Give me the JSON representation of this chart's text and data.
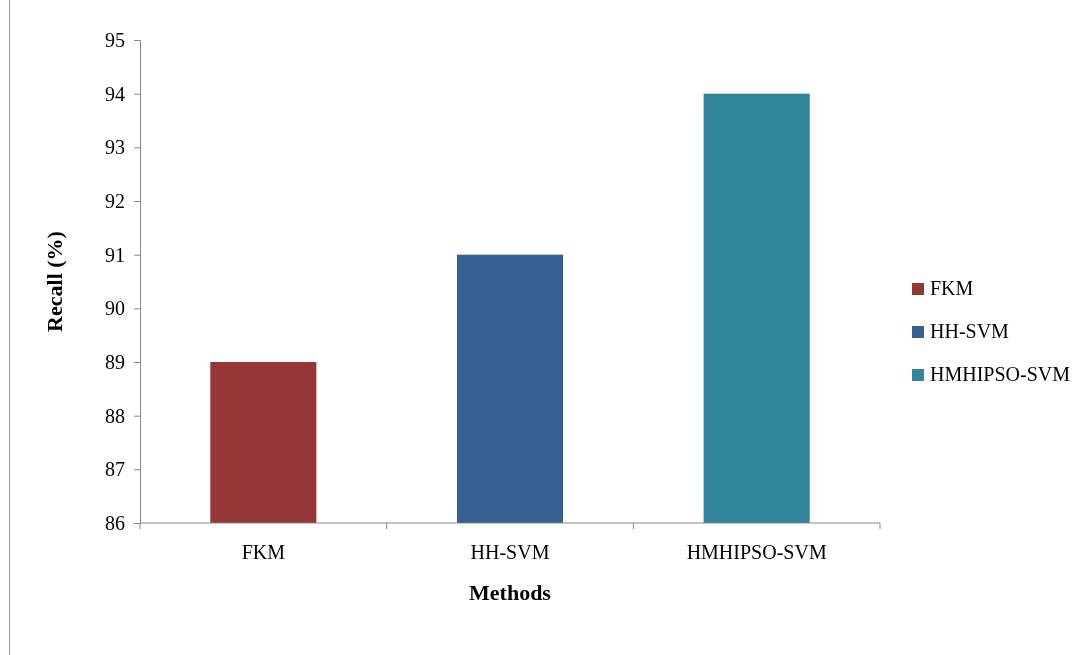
{
  "chart_data": {
    "type": "bar",
    "xlabel": "Methods",
    "ylabel": "Recall (%)",
    "categories": [
      "FKM",
      "HH-SVM",
      "HMHIPSO-SVM"
    ],
    "series": [
      {
        "name": "FKM",
        "color": "#953735",
        "values": [
          89,
          null,
          null
        ]
      },
      {
        "name": "HH-SVM",
        "color": "#376092",
        "values": [
          null,
          91,
          null
        ]
      },
      {
        "name": "HMHIPSO-SVM",
        "color": "#31859c",
        "values": [
          null,
          null,
          94
        ]
      }
    ],
    "ylim": [
      86,
      95
    ],
    "yticks": [
      86,
      87,
      88,
      89,
      90,
      91,
      92,
      93,
      94,
      95
    ],
    "grid": false,
    "legend": "right"
  }
}
